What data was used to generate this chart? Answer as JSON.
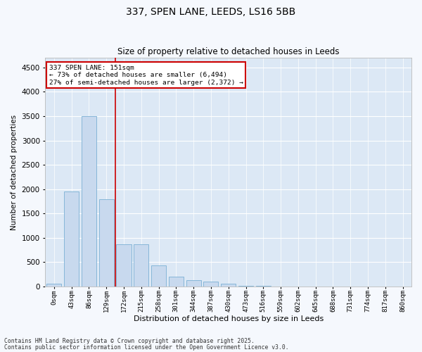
{
  "title1": "337, SPEN LANE, LEEDS, LS16 5BB",
  "title2": "Size of property relative to detached houses in Leeds",
  "xlabel": "Distribution of detached houses by size in Leeds",
  "ylabel": "Number of detached properties",
  "bar_color": "#c8d9ee",
  "bar_edge_color": "#7aafd4",
  "background_color": "#dce8f5",
  "fig_background_color": "#f5f8fd",
  "grid_color": "#ffffff",
  "vline_color": "#cc0000",
  "vline_x": 3.5,
  "annotation_box_color": "#cc0000",
  "annotation_text_line1": "337 SPEN LANE: 151sqm",
  "annotation_text_line2": "← 73% of detached houses are smaller (6,494)",
  "annotation_text_line3": "27% of semi-detached houses are larger (2,372) →",
  "categories": [
    "0sqm",
    "43sqm",
    "86sqm",
    "129sqm",
    "172sqm",
    "215sqm",
    "258sqm",
    "301sqm",
    "344sqm",
    "387sqm",
    "430sqm",
    "473sqm",
    "516sqm",
    "559sqm",
    "602sqm",
    "645sqm",
    "688sqm",
    "731sqm",
    "774sqm",
    "817sqm",
    "860sqm"
  ],
  "values": [
    50,
    1950,
    3500,
    1800,
    860,
    860,
    430,
    195,
    130,
    100,
    60,
    20,
    10,
    5,
    3,
    2,
    1,
    1,
    0,
    0,
    0
  ],
  "ylim": [
    0,
    4700
  ],
  "yticks": [
    0,
    500,
    1000,
    1500,
    2000,
    2500,
    3000,
    3500,
    4000,
    4500
  ],
  "footnote1": "Contains HM Land Registry data © Crown copyright and database right 2025.",
  "footnote2": "Contains public sector information licensed under the Open Government Licence v3.0."
}
